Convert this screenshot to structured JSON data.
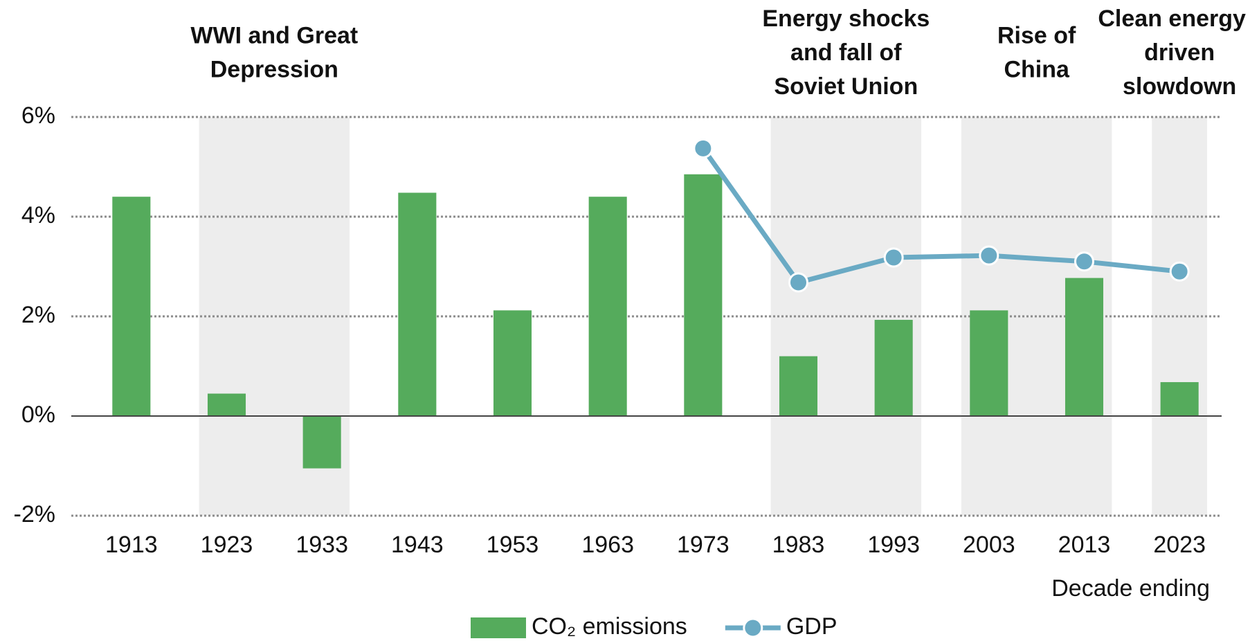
{
  "chart_data": {
    "type": "bar",
    "categories": [
      "1913",
      "1923",
      "1933",
      "1943",
      "1953",
      "1963",
      "1973",
      "1983",
      "1993",
      "2003",
      "2013",
      "2023"
    ],
    "series": [
      {
        "name": "CO₂ emissions",
        "type": "bar",
        "color": "#55ab5c",
        "values": [
          4.4,
          0.45,
          -1.05,
          4.48,
          2.12,
          4.4,
          4.85,
          1.2,
          1.93,
          2.12,
          2.77,
          0.68
        ]
      },
      {
        "name": "GDP",
        "type": "line",
        "color": "#6aaac4",
        "values": [
          null,
          null,
          null,
          null,
          null,
          null,
          5.37,
          2.68,
          3.18,
          3.22,
          3.1,
          2.9
        ]
      }
    ],
    "ylim": [
      -2,
      6
    ],
    "yticks": [
      {
        "value": -2,
        "label": "-2%"
      },
      {
        "value": 0,
        "label": "0%"
      },
      {
        "value": 2,
        "label": "2%"
      },
      {
        "value": 4,
        "label": "4%"
      },
      {
        "value": 6,
        "label": "6%"
      }
    ],
    "xlabel": "Decade ending",
    "grid": true,
    "legend": "bottom",
    "annotations": [
      {
        "lines": [
          "WWI and Great",
          "Depression"
        ],
        "from": "1923",
        "to": "1933"
      },
      {
        "lines": [
          "Energy shocks",
          "and fall of",
          "Soviet Union"
        ],
        "from": "1983",
        "to": "1993"
      },
      {
        "lines": [
          "Rise of",
          "China"
        ],
        "from": "2003",
        "to": "2013"
      },
      {
        "lines": [
          "Clean energy",
          "driven",
          "slowdown"
        ],
        "from": "2023",
        "to": "2023"
      }
    ]
  }
}
